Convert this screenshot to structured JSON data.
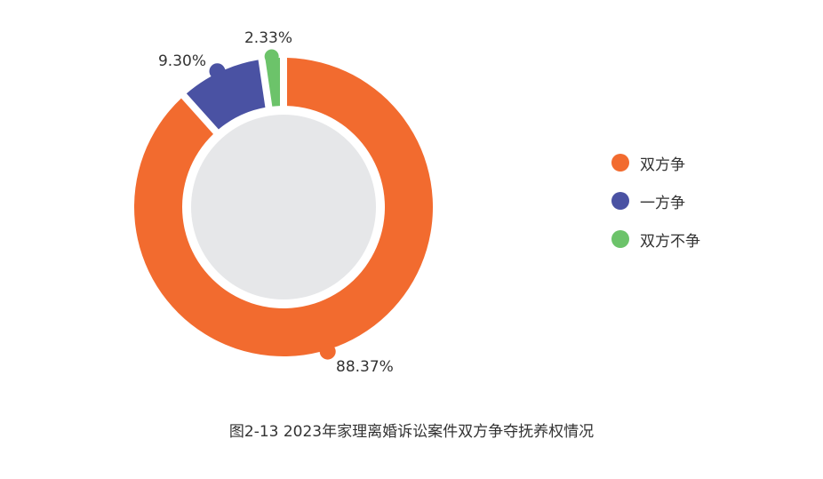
{
  "chart_data": {
    "type": "pie",
    "style": "donut",
    "categories": [
      "双方争",
      "一方争",
      "双方不争"
    ],
    "values": [
      88.37,
      9.3,
      2.33
    ],
    "value_labels": [
      "88.37%",
      "9.30%",
      "2.33%"
    ],
    "colors": [
      "#f26b2f",
      "#4a52a3",
      "#6cc36a"
    ],
    "center_fill": "#e6e7e9",
    "legend_position": "right",
    "title": "图2-13  2023年家理离婚诉讼案件双方争夺抚养权情况"
  }
}
